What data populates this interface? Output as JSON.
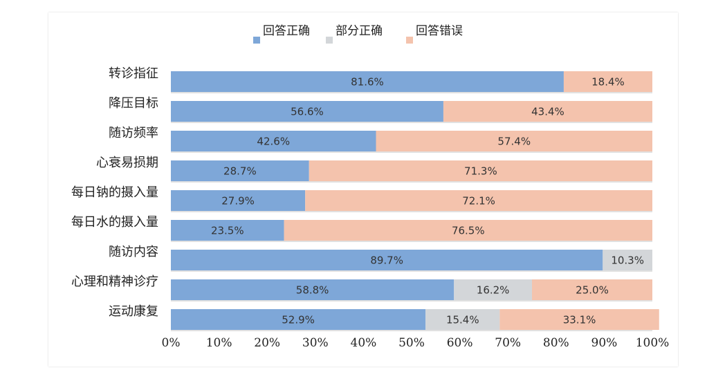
{
  "chart_data": {
    "type": "bar",
    "orientation": "horizontal",
    "stacked": true,
    "categories": [
      "转诊指征",
      "降压目标",
      "随访频率",
      "心衰易损期",
      "每日钠的摄入量",
      "每日水的摄入量",
      "随访内容",
      "心理和精神诊疗",
      "运动康复"
    ],
    "series": [
      {
        "name": "回答正确",
        "color": "#7ea7d8",
        "values": [
          81.6,
          56.6,
          42.6,
          28.7,
          27.9,
          23.5,
          89.7,
          58.8,
          52.9
        ]
      },
      {
        "name": "部分正确",
        "color": "#d3d6d9",
        "values": [
          0,
          0,
          0,
          0,
          0,
          0,
          10.3,
          16.2,
          15.4
        ]
      },
      {
        "name": "回答错误",
        "color": "#f4c3ad",
        "values": [
          18.4,
          43.4,
          57.4,
          71.3,
          72.1,
          76.5,
          0,
          25.0,
          33.1
        ]
      }
    ],
    "data_labels": [
      [
        "81.6%",
        "",
        "18.4%"
      ],
      [
        "56.6%",
        "",
        "43.4%"
      ],
      [
        "42.6%",
        "",
        "57.4%"
      ],
      [
        "28.7%",
        "",
        "71.3%"
      ],
      [
        "27.9%",
        "",
        "72.1%"
      ],
      [
        "23.5%",
        "",
        "76.5%"
      ],
      [
        "89.7%",
        "10.3%",
        ""
      ],
      [
        "58.8%",
        "16.2%",
        "25.0%"
      ],
      [
        "52.9%",
        "15.4%",
        "33.1%"
      ]
    ],
    "x_ticks": [
      "0%",
      "10%",
      "20%",
      "30%",
      "40%",
      "50%",
      "60%",
      "70%",
      "80%",
      "90%",
      "100%"
    ],
    "xlim": [
      0,
      100
    ],
    "grid": false,
    "legend": "top"
  }
}
